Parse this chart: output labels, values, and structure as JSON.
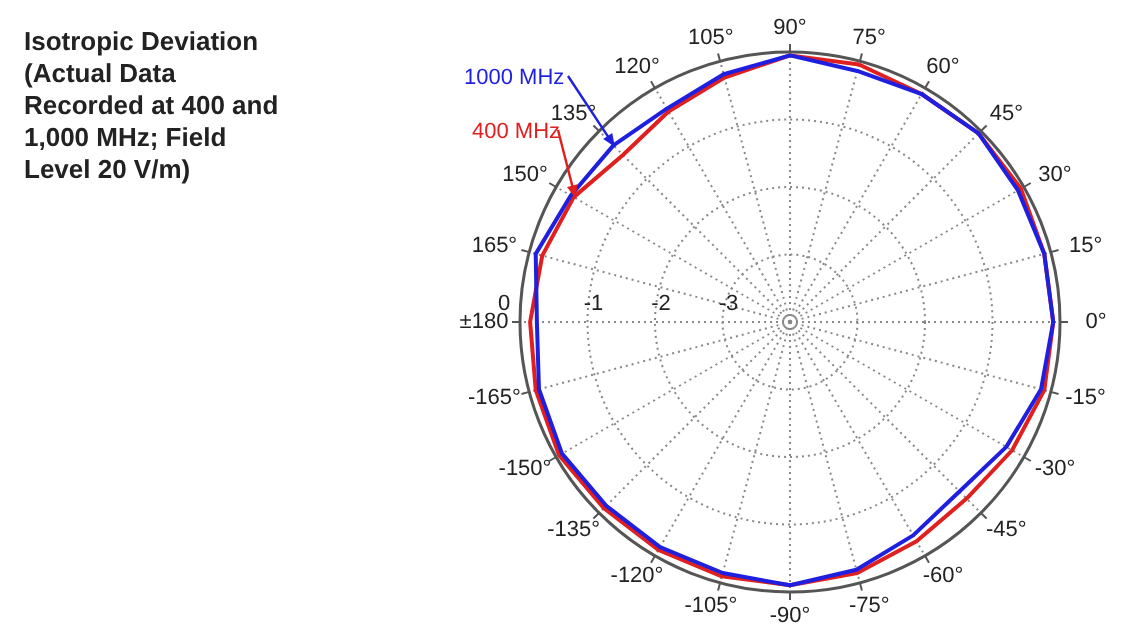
{
  "chart_data": {
    "type": "radar",
    "title": "Isotropic Deviation (Actual Data Recorded at 400 and 1,000 MHz; Field Level 20 V/m)",
    "categories": [
      "90°",
      "75°",
      "60°",
      "45°",
      "30°",
      "15°",
      "0°",
      "-15°",
      "-30°",
      "-45°",
      "-60°",
      "-75°",
      "-90°",
      "-105°",
      "-120°",
      "-135°",
      "-150°",
      "-165°",
      "±180",
      "165°",
      "150°",
      "135°",
      "120°",
      "105°"
    ],
    "ylim": [
      -4,
      0
    ],
    "yticks": [
      -3,
      -2,
      -1,
      0
    ],
    "grid": true,
    "legend": "top left",
    "series": [
      {
        "name": "1000 MHz",
        "color": "#1f1fe0",
        "values": [
          -0.05,
          -0.15,
          -0.1,
          -0.05,
          -0.1,
          -0.1,
          -0.1,
          -0.15,
          -0.3,
          -0.45,
          -0.35,
          -0.2,
          -0.1,
          -0.15,
          -0.15,
          -0.15,
          -0.1,
          -0.15,
          -0.25,
          -0.1,
          -0.25,
          -0.3,
          -0.35,
          -0.2
        ]
      },
      {
        "name": "400 MHz",
        "color": "#e01f1f",
        "values": [
          -0.05,
          -0.05,
          -0.1,
          -0.05,
          -0.05,
          -0.1,
          -0.1,
          -0.1,
          -0.2,
          -0.3,
          -0.25,
          -0.15,
          -0.1,
          -0.1,
          -0.1,
          -0.1,
          -0.05,
          -0.1,
          -0.15,
          -0.2,
          -0.3,
          -0.5,
          -0.4,
          -0.25
        ]
      }
    ]
  }
}
